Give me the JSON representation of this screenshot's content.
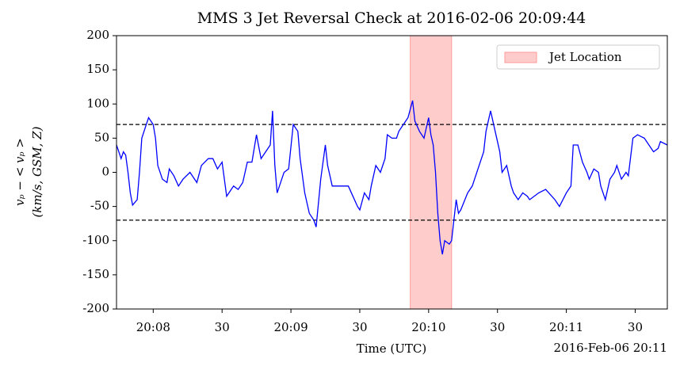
{
  "chart_data": {
    "type": "line",
    "title": "MMS 3 Jet Reversal Check at 2016-02-06 20:09:44",
    "xlabel": "Time (UTC)",
    "ylabel": [
      "vₚ − < vₚ >",
      "(km/s, GSM, Z)"
    ],
    "x_offset_label": "2016-Feb-06 20:11",
    "xlim": [
      "20:07:44",
      "20:11:44"
    ],
    "xticks": [
      {
        "value": "20:08:00",
        "label": "20:08"
      },
      {
        "value": "20:08:30",
        "label": "30"
      },
      {
        "value": "20:09:00",
        "label": "20:09"
      },
      {
        "value": "20:09:30",
        "label": "30"
      },
      {
        "value": "20:10:00",
        "label": "20:10"
      },
      {
        "value": "20:10:30",
        "label": "30"
      },
      {
        "value": "20:11:00",
        "label": "20:11"
      },
      {
        "value": "20:11:30",
        "label": "30"
      }
    ],
    "ylim": [
      -200,
      200
    ],
    "yticks": [
      -200,
      -150,
      -100,
      -50,
      0,
      50,
      100,
      150,
      200
    ],
    "hlines": [
      70,
      -70
    ],
    "hline_color": "#000000",
    "span": [
      "20:09:52",
      "20:10:10"
    ],
    "span_name": "Jet Location",
    "span_color": "#ff9999",
    "legend": "upper right",
    "x": [
      "20:07:44",
      "20:07:45",
      "20:07:46",
      "20:07:47",
      "20:07:48",
      "20:07:49",
      "20:07:50",
      "20:07:51",
      "20:07:53",
      "20:07:54",
      "20:07:55",
      "20:07:57",
      "20:07:58",
      "20:08:00",
      "20:08:01",
      "20:08:02",
      "20:08:04",
      "20:08:06",
      "20:08:07",
      "20:08:09",
      "20:08:11",
      "20:08:13",
      "20:08:16",
      "20:08:19",
      "20:08:21",
      "20:08:24",
      "20:08:26",
      "20:08:28",
      "20:08:30",
      "20:08:32",
      "20:08:33",
      "20:08:35",
      "20:08:37",
      "20:08:39",
      "20:08:41",
      "20:08:43",
      "20:08:45",
      "20:08:47",
      "20:08:49",
      "20:08:51",
      "20:08:52",
      "20:08:53",
      "20:08:54",
      "20:08:56",
      "20:08:57",
      "20:08:59",
      "20:09:01",
      "20:09:03",
      "20:09:04",
      "20:09:06",
      "20:09:08",
      "20:09:10",
      "20:09:11",
      "20:09:13",
      "20:09:15",
      "20:09:16",
      "20:09:18",
      "20:09:22",
      "20:09:25",
      "20:09:27",
      "20:09:29",
      "20:09:30",
      "20:09:32",
      "20:09:34",
      "20:09:35",
      "20:09:37",
      "20:09:39",
      "20:09:41",
      "20:09:42",
      "20:09:44",
      "20:09:46",
      "20:09:47",
      "20:09:49",
      "20:09:51",
      "20:09:53",
      "20:09:54",
      "20:09:56",
      "20:09:58",
      "20:10:00",
      "20:10:01",
      "20:10:02",
      "20:10:03",
      "20:10:04",
      "20:10:05",
      "20:10:06",
      "20:10:07",
      "20:10:09",
      "20:10:10",
      "20:10:11",
      "20:10:12",
      "20:10:13",
      "20:10:14",
      "20:10:17",
      "20:10:19",
      "20:10:20",
      "20:10:22",
      "20:10:24",
      "20:10:25",
      "20:10:27",
      "20:10:29",
      "20:10:31",
      "20:10:32",
      "20:10:34",
      "20:10:36",
      "20:10:37",
      "20:10:39",
      "20:10:41",
      "20:10:43",
      "20:10:44",
      "20:10:48",
      "20:10:51",
      "20:10:55",
      "20:10:57",
      "20:11:00",
      "20:11:02",
      "20:11:03",
      "20:11:05",
      "20:11:07",
      "20:11:09",
      "20:11:10",
      "20:11:12",
      "20:11:14",
      "20:11:15",
      "20:11:17",
      "20:11:19",
      "20:11:21",
      "20:11:22",
      "20:11:24",
      "20:11:26",
      "20:11:27",
      "20:11:29",
      "20:11:31",
      "20:11:34",
      "20:11:36",
      "20:11:38",
      "20:11:40",
      "20:11:41",
      "20:11:44"
    ],
    "series": [
      {
        "name": "vp",
        "color": "#0000ff",
        "values": [
          40,
          30,
          20,
          30,
          25,
          0,
          -30,
          -48,
          -40,
          0,
          50,
          70,
          80,
          70,
          50,
          10,
          -10,
          -15,
          5,
          -5,
          -20,
          -10,
          0,
          -15,
          10,
          20,
          20,
          5,
          15,
          -35,
          -30,
          -20,
          -25,
          -15,
          15,
          15,
          55,
          20,
          30,
          40,
          90,
          10,
          -30,
          -10,
          0,
          5,
          70,
          60,
          20,
          -30,
          -60,
          -70,
          -80,
          -10,
          40,
          10,
          -20,
          -20,
          -20,
          -35,
          -50,
          -55,
          -30,
          -40,
          -20,
          10,
          0,
          20,
          55,
          50,
          50,
          60,
          70,
          80,
          105,
          75,
          60,
          50,
          80,
          55,
          40,
          0,
          -60,
          -100,
          -120,
          -100,
          -105,
          -100,
          -70,
          -40,
          -60,
          -55,
          -30,
          -20,
          -10,
          10,
          30,
          60,
          90,
          60,
          30,
          0,
          10,
          -20,
          -30,
          -40,
          -30,
          -35,
          -40,
          -30,
          -25,
          -40,
          -50,
          -30,
          -20,
          40,
          40,
          15,
          0,
          -10,
          5,
          0,
          -20,
          -40,
          -10,
          0,
          10,
          -10,
          0,
          -5,
          50,
          55,
          50,
          40,
          30,
          35,
          45,
          40
        ]
      }
    ]
  }
}
